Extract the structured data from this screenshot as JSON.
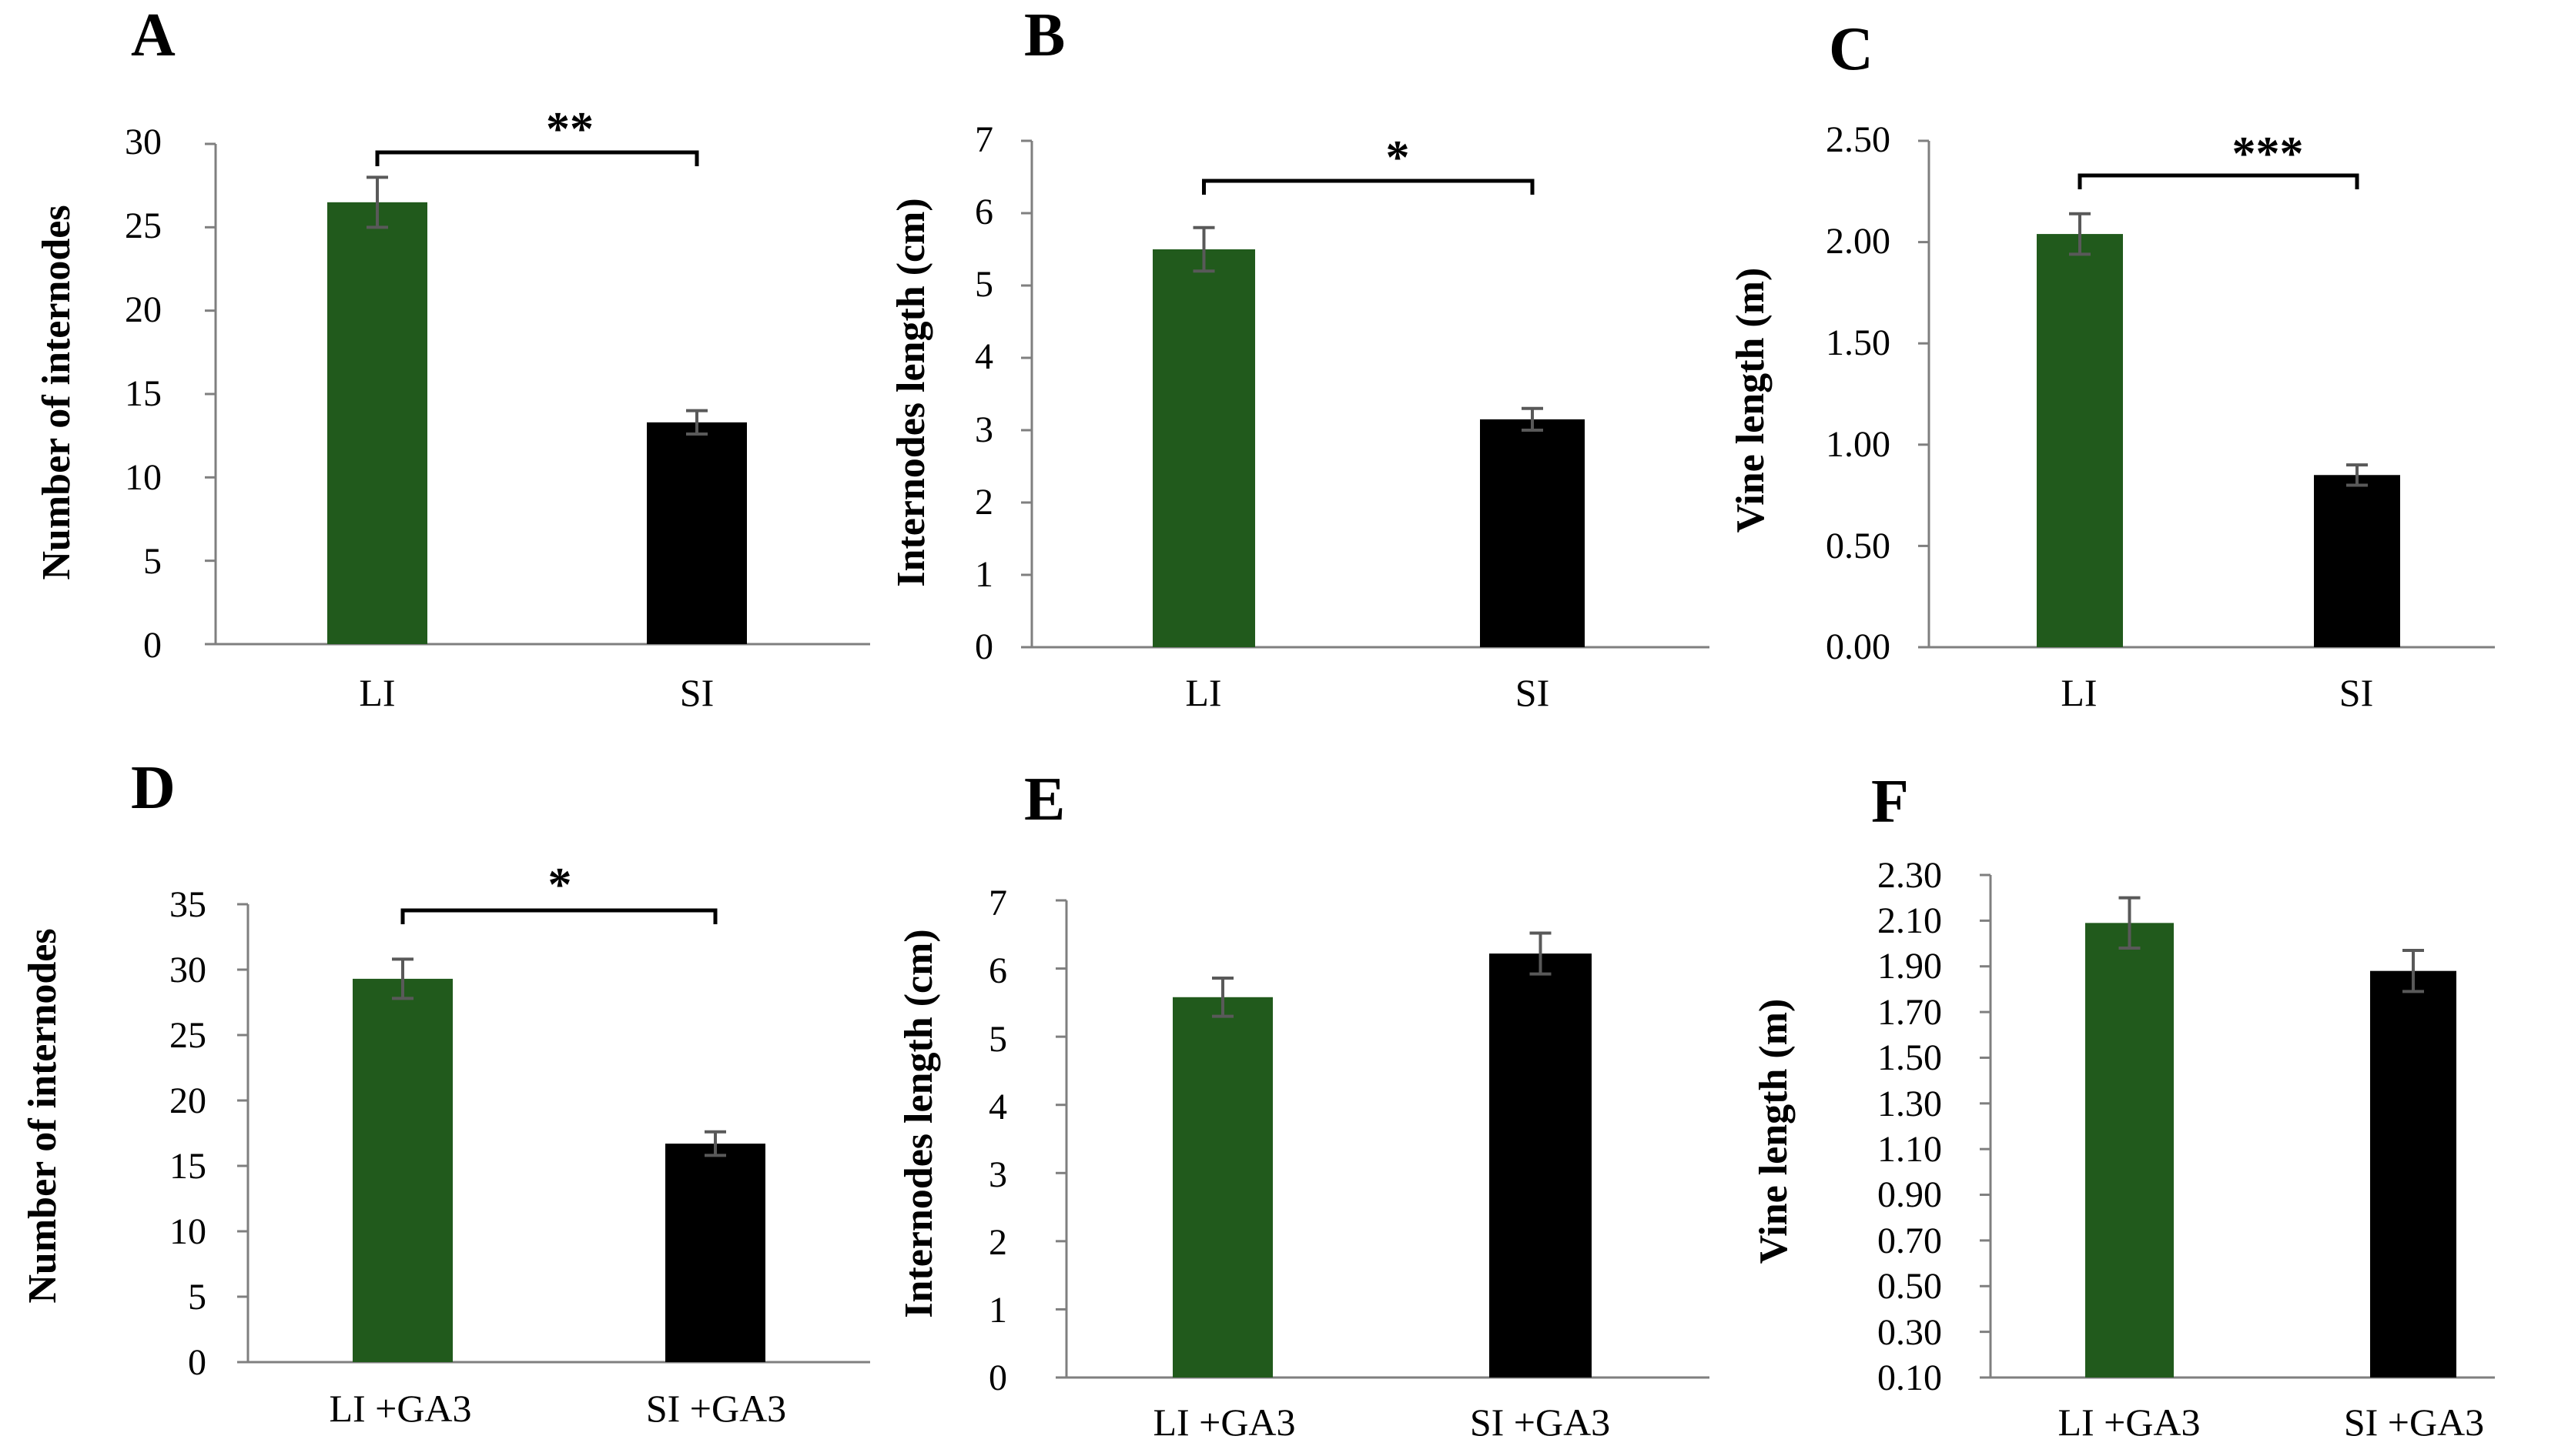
{
  "chart_data": [
    {
      "panel": "A",
      "type": "bar",
      "categories": [
        "LI",
        "SI"
      ],
      "values": [
        26.5,
        13.3
      ],
      "errors": [
        1.5,
        0.7
      ],
      "colors": [
        "#215a1c",
        "#000000"
      ],
      "ylabel": "Number of internodes",
      "ylim": [
        0,
        30
      ],
      "ticks": [
        "0",
        "5",
        "10",
        "15",
        "20",
        "25",
        "30"
      ],
      "significance": "**"
    },
    {
      "panel": "B",
      "type": "bar",
      "categories": [
        "LI",
        "SI"
      ],
      "values": [
        5.5,
        3.15
      ],
      "errors": [
        0.3,
        0.15
      ],
      "colors": [
        "#215a1c",
        "#000000"
      ],
      "ylabel": "Internodes length (cm)",
      "ylim": [
        0,
        7
      ],
      "ticks": [
        "0",
        "1",
        "2",
        "3",
        "4",
        "5",
        "6",
        "7"
      ],
      "significance": "*"
    },
    {
      "panel": "C",
      "type": "bar",
      "categories": [
        "LI",
        "SI"
      ],
      "values": [
        2.04,
        0.85
      ],
      "errors": [
        0.1,
        0.05
      ],
      "colors": [
        "#215a1c",
        "#000000"
      ],
      "ylabel": "Vine length (m)",
      "ylim": [
        0,
        2.5
      ],
      "ticks": [
        "0.00",
        "0.50",
        "1.00",
        "1.50",
        "2.00",
        "2.50"
      ],
      "significance": "***"
    },
    {
      "panel": "D",
      "type": "bar",
      "categories": [
        "LI +GA3",
        "SI +GA3"
      ],
      "values": [
        29.3,
        16.7
      ],
      "errors": [
        1.5,
        0.9
      ],
      "colors": [
        "#215a1c",
        "#000000"
      ],
      "ylabel": "Number of internodes",
      "ylim": [
        0,
        35
      ],
      "ticks": [
        "0",
        "5",
        "10",
        "15",
        "20",
        "25",
        "30",
        "35"
      ],
      "significance": "*"
    },
    {
      "panel": "E",
      "type": "bar",
      "categories": [
        "LI +GA3",
        "SI +GA3"
      ],
      "values": [
        5.58,
        6.22
      ],
      "errors": [
        0.28,
        0.3
      ],
      "colors": [
        "#215a1c",
        "#000000"
      ],
      "ylabel": "Internodes length (cm)",
      "ylim": [
        0,
        7
      ],
      "ticks": [
        "0",
        "1",
        "2",
        "3",
        "4",
        "5",
        "6",
        "7"
      ],
      "significance": ""
    },
    {
      "panel": "F",
      "type": "bar",
      "categories": [
        "LI +GA3",
        "SI +GA3"
      ],
      "values": [
        2.09,
        1.88
      ],
      "errors": [
        0.11,
        0.09
      ],
      "colors": [
        "#215a1c",
        "#000000"
      ],
      "ylabel": "Vine length (m)",
      "ylim": [
        0.1,
        2.3
      ],
      "ticks": [
        "0.10",
        "0.30",
        "0.50",
        "0.70",
        "0.90",
        "1.10",
        "1.30",
        "1.50",
        "1.70",
        "1.90",
        "2.10",
        "2.30"
      ],
      "significance": ""
    }
  ]
}
